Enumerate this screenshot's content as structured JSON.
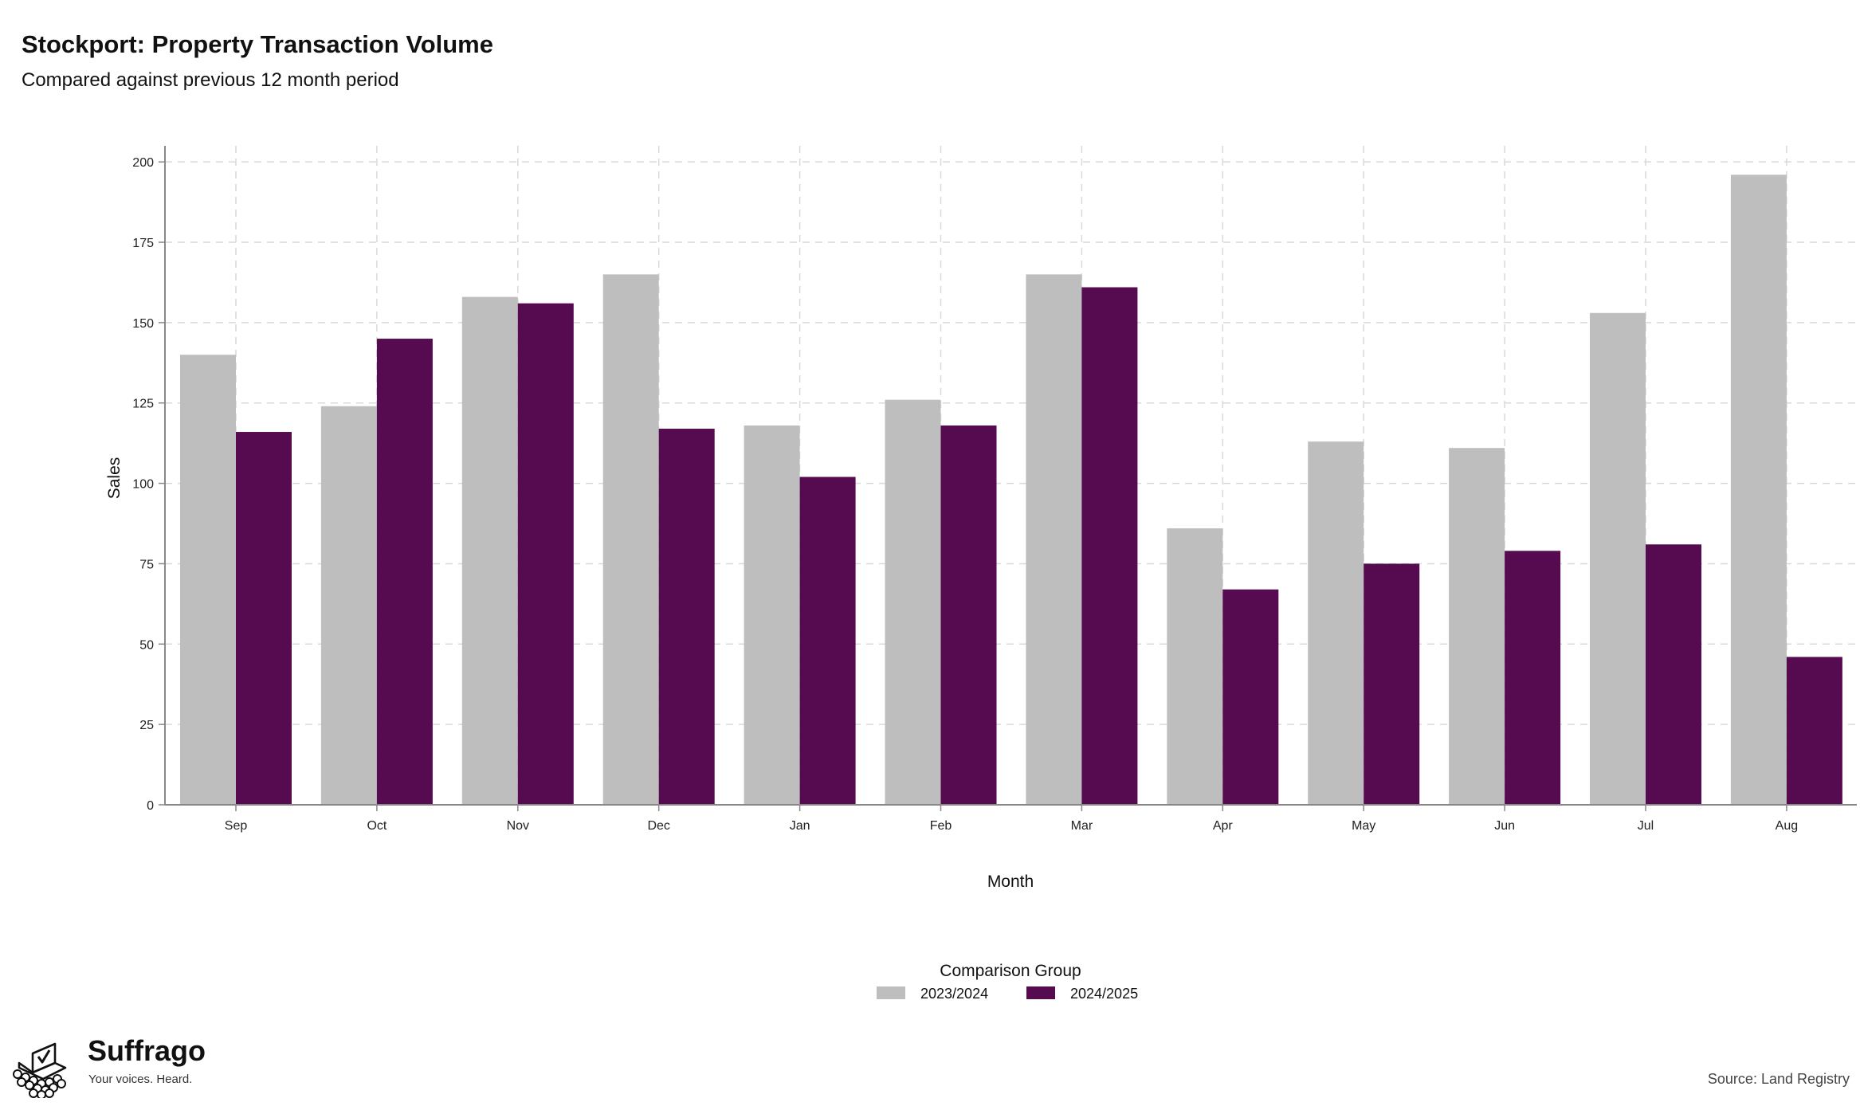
{
  "chart_data": {
    "type": "bar",
    "title": "Stockport: Property Transaction Volume",
    "subtitle": "Compared against previous 12 month period",
    "xlabel": "Month",
    "ylabel": "Sales",
    "categories": [
      "Sep",
      "Oct",
      "Nov",
      "Dec",
      "Jan",
      "Feb",
      "Mar",
      "Apr",
      "May",
      "Jun",
      "Jul",
      "Aug"
    ],
    "series": [
      {
        "name": "2023/2024",
        "color": "#bebebe",
        "values": [
          140,
          124,
          158,
          165,
          118,
          126,
          165,
          86,
          113,
          111,
          153,
          196
        ]
      },
      {
        "name": "2024/2025",
        "color": "#560b51",
        "values": [
          116,
          145,
          156,
          117,
          102,
          118,
          161,
          67,
          75,
          79,
          81,
          46
        ]
      }
    ],
    "ylim": [
      0,
      205
    ],
    "yticks": [
      0,
      25,
      50,
      75,
      100,
      125,
      150,
      175,
      200
    ],
    "grid": true,
    "legend_title": "Comparison Group",
    "legend_position": "bottom"
  },
  "brand": {
    "name": "Suffrago",
    "tagline": "Your voices. Heard.",
    "logo_icon": "ballot-box-icon"
  },
  "source": "Source: Land Registry"
}
